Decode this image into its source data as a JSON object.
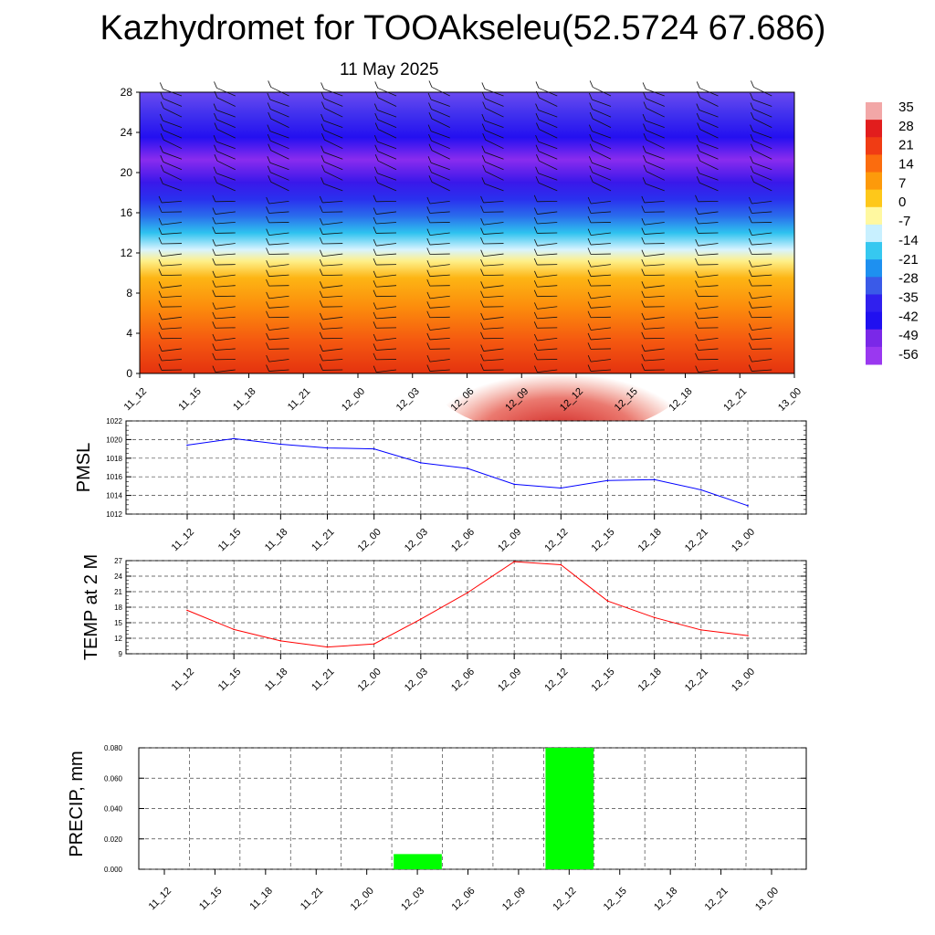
{
  "header": {
    "title": "Kazhydromet for TOOAkseleu(52.5724 67.686)",
    "date": "11 May 2025"
  },
  "time_labels": [
    "11_12",
    "11_15",
    "11_18",
    "11_21",
    "12_00",
    "12_03",
    "12_06",
    "12_09",
    "12_12",
    "12_15",
    "12_18",
    "12_21",
    "13_00"
  ],
  "colorbar": {
    "labels": [
      "35",
      "28",
      "21",
      "14",
      "7",
      "0",
      "-7",
      "-14",
      "-21",
      "-28",
      "-35",
      "-42",
      "-49",
      "-56"
    ],
    "colors": [
      "#f2a7a7",
      "#e21d1d",
      "#f03c14",
      "#fb6c0e",
      "#fd9a0b",
      "#fec81a",
      "#fff8a0",
      "#c8f0ff",
      "#36c8f0",
      "#1e90f0",
      "#3a5ae8",
      "#3020ee",
      "#2010f0",
      "#7a28e8",
      "#9a38f0"
    ]
  },
  "chart_data": [
    {
      "type": "heatmap",
      "name": "vertical-profile",
      "title": "",
      "x": [
        "11_12",
        "11_15",
        "11_18",
        "11_21",
        "12_00",
        "12_03",
        "12_06",
        "12_09",
        "12_12",
        "12_15",
        "12_18",
        "12_21",
        "13_00"
      ],
      "y_ticks": [
        "0",
        "4",
        "8",
        "12",
        "16",
        "20",
        "24",
        "28"
      ],
      "ylim": [
        0,
        28
      ],
      "color_range": [
        -56,
        35
      ],
      "wind_barbs": true
    },
    {
      "type": "line",
      "name": "pmsl",
      "ylabel": "PMSL",
      "categories": [
        "11_12",
        "11_15",
        "11_18",
        "11_21",
        "12_00",
        "12_03",
        "12_06",
        "12_09",
        "12_12",
        "12_15",
        "12_18",
        "12_21",
        "13_00"
      ],
      "values": [
        1019.4,
        1020.1,
        1019.5,
        1019.1,
        1019.0,
        1017.5,
        1016.9,
        1015.2,
        1014.8,
        1015.6,
        1015.7,
        1014.6,
        1012.9
      ],
      "y_ticks": [
        "1012",
        "1014",
        "1016",
        "1018",
        "1020",
        "1022"
      ],
      "ylim": [
        1012,
        1022
      ],
      "color": "#0000ff",
      "grid": true
    },
    {
      "type": "line",
      "name": "temp2m",
      "ylabel": "TEMP at 2 M",
      "categories": [
        "11_12",
        "11_15",
        "11_18",
        "11_21",
        "12_00",
        "12_03",
        "12_06",
        "12_09",
        "12_12",
        "12_15",
        "12_18",
        "12_21",
        "13_00"
      ],
      "values": [
        17.4,
        13.7,
        11.5,
        10.3,
        10.9,
        15.7,
        20.8,
        26.8,
        26.2,
        19.2,
        16.0,
        13.6,
        12.5
      ],
      "y_ticks": [
        "9",
        "12",
        "15",
        "18",
        "21",
        "24",
        "27"
      ],
      "ylim": [
        9,
        27
      ],
      "color": "#ff0000",
      "grid": true
    },
    {
      "type": "bar",
      "name": "precip",
      "ylabel": "PRECIP, mm",
      "categories": [
        "11_12",
        "11_15",
        "11_18",
        "11_21",
        "12_00",
        "12_03",
        "12_06",
        "12_09",
        "12_12",
        "12_15",
        "12_18",
        "12_21",
        "13_00"
      ],
      "values": [
        0,
        0,
        0,
        0,
        0,
        0.01,
        0,
        0,
        0.08,
        0,
        0,
        0,
        0
      ],
      "y_ticks": [
        "0.000",
        "0.020",
        "0.040",
        "0.060",
        "0.080"
      ],
      "ylim": [
        0,
        0.08
      ],
      "color": "#00ff00",
      "grid": true
    }
  ]
}
